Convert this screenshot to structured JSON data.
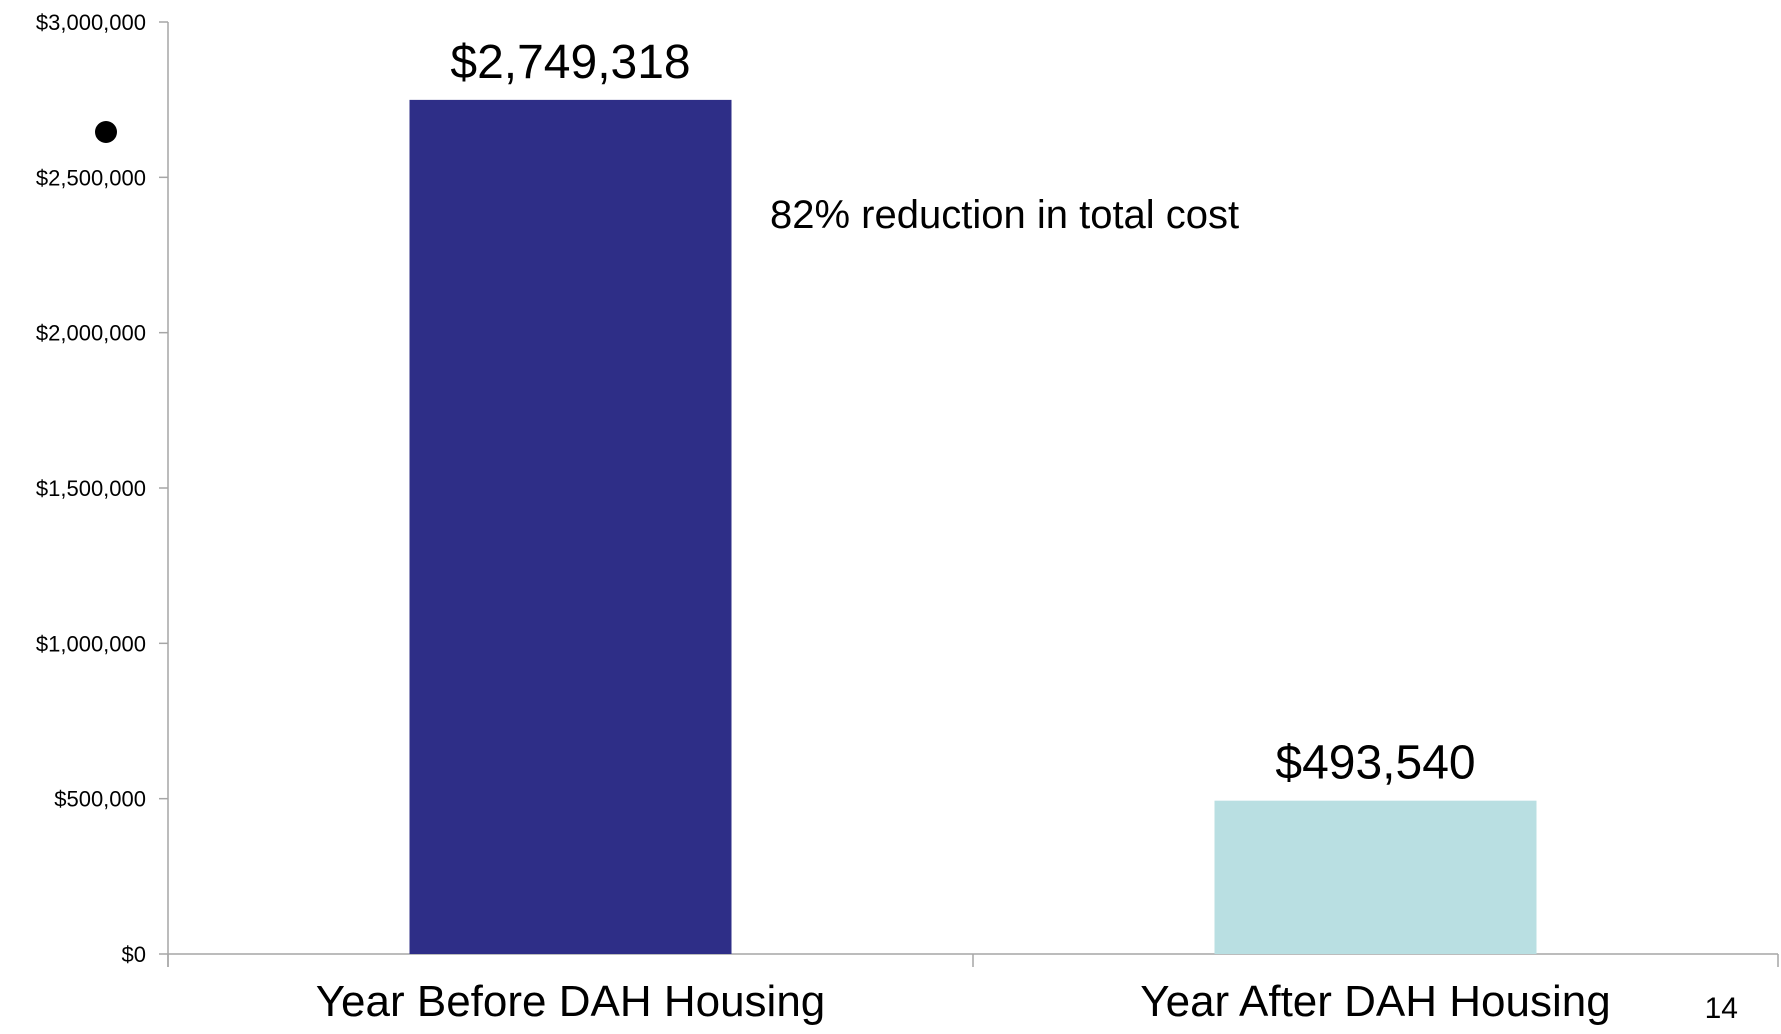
{
  "chart_data": {
    "type": "bar",
    "categories": [
      "Year Before DAH Housing",
      "Year After DAH Housing"
    ],
    "values": [
      2749318,
      493540
    ],
    "data_labels": [
      "$2,749,318",
      "$493,540"
    ],
    "bar_colors": [
      "#2e2e87",
      "#b9dfe2"
    ],
    "ylim": [
      0,
      3000000
    ],
    "yticks": [
      0,
      500000,
      1000000,
      1500000,
      2000000,
      2500000,
      3000000
    ],
    "ytick_labels": [
      "$0",
      "$500,000",
      "$1,000,000",
      "$1,500,000",
      "$2,000,000",
      "$2,500,000",
      "$3,000,000"
    ],
    "title": "",
    "xlabel": "",
    "ylabel": "",
    "grid": false,
    "legend": "none",
    "annotations": {
      "bullet": "●",
      "reduction_text": "82% reduction in total cost"
    }
  },
  "page_number": "14",
  "colors": {
    "axis": "#a6a6a6",
    "text": "#000000"
  }
}
